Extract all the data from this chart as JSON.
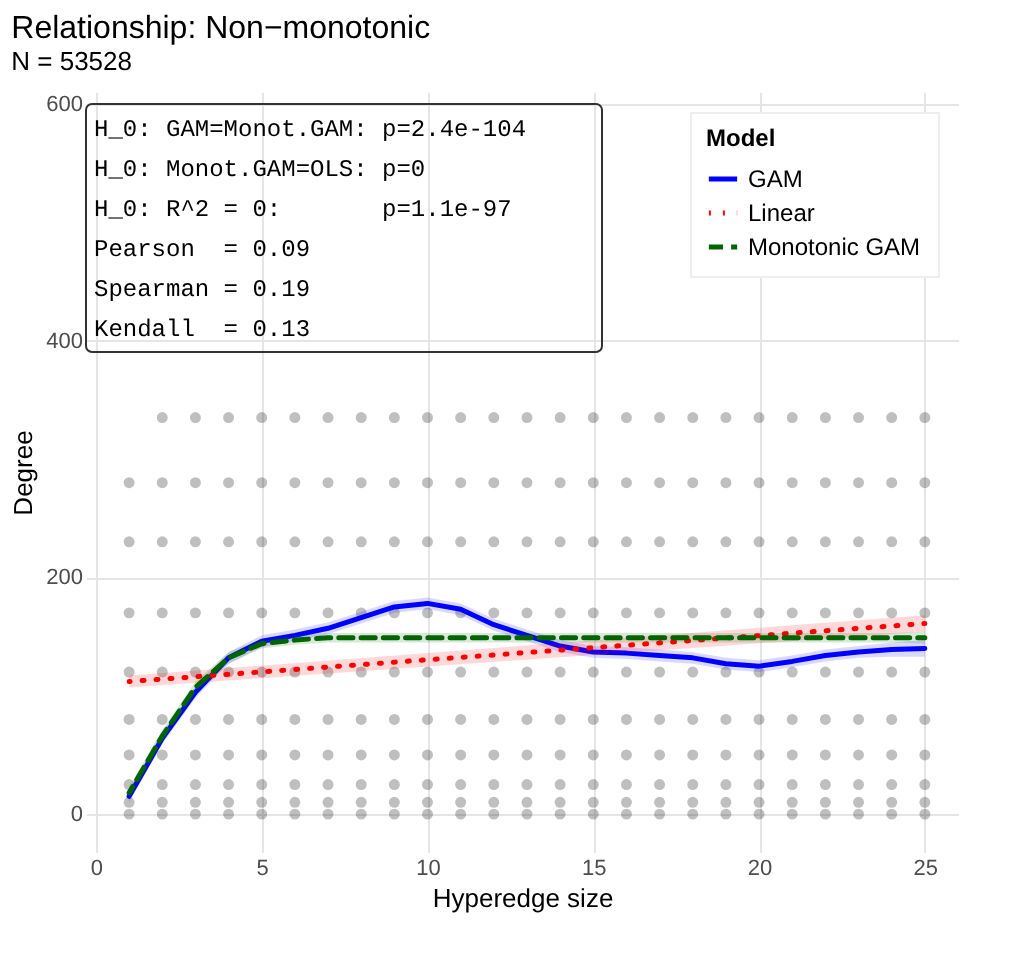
{
  "chart_data": {
    "type": "scatter",
    "title": "Relationship: Non−monotonic",
    "subtitle": "N = 53528",
    "xlabel": "Hyperedge size",
    "ylabel": "Degree",
    "legend_title": "Model",
    "annotations": [
      "H_0: GAM=Monot.GAM: p=2.4e-104",
      "H_0: Monot.GAM=OLS: p=0",
      "H_0: R^2 = 0:       p=1.1e-97",
      "Pearson  = 0.09",
      "Spearman = 0.19",
      "Kendall  = 0.13"
    ],
    "xlim": [
      -0.3,
      26
    ],
    "xticks": [
      0,
      5,
      10,
      15,
      20,
      25
    ],
    "ylim": [
      -32,
      610
    ],
    "yticks": [
      0,
      200,
      400,
      600
    ],
    "grid": true,
    "legend": "top right",
    "series": [
      {
        "type": "scatter",
        "color": "#000000",
        "marker": "circle",
        "x": [
          1,
          1,
          1,
          1,
          1,
          1,
          1,
          1,
          1,
          2,
          2,
          2,
          2,
          2,
          2,
          2,
          2,
          2,
          2,
          3,
          3,
          3,
          3,
          3,
          3,
          3,
          3,
          3,
          3,
          4,
          4,
          4,
          4,
          4,
          4,
          4,
          4,
          4,
          4,
          5,
          5,
          5,
          5,
          5,
          5,
          5,
          5,
          5,
          5,
          6,
          6,
          6,
          6,
          6,
          6,
          6,
          6,
          6,
          6,
          7,
          7,
          7,
          7,
          7,
          7,
          7,
          7,
          7,
          7,
          8,
          8,
          8,
          8,
          8,
          8,
          8,
          8,
          8,
          8,
          9,
          9,
          9,
          9,
          9,
          9,
          9,
          9,
          9,
          9,
          10,
          10,
          10,
          10,
          10,
          10,
          10,
          10,
          10,
          10,
          11,
          11,
          11,
          11,
          11,
          11,
          11,
          11,
          11,
          11,
          12,
          12,
          12,
          12,
          12,
          12,
          12,
          12,
          12,
          12,
          13,
          13,
          13,
          13,
          13,
          13,
          13,
          13,
          13,
          13,
          14,
          14,
          14,
          14,
          14,
          14,
          14,
          14,
          14,
          14,
          15,
          15,
          15,
          15,
          15,
          15,
          15,
          15,
          15,
          15,
          16,
          16,
          16,
          16,
          16,
          16,
          16,
          16,
          16,
          16,
          17,
          17,
          17,
          17,
          17,
          17,
          17,
          17,
          17,
          17,
          18,
          18,
          18,
          18,
          18,
          18,
          18,
          18,
          18,
          18,
          19,
          19,
          19,
          19,
          19,
          19,
          19,
          19,
          19,
          19,
          20,
          20,
          20,
          20,
          20,
          20,
          20,
          20,
          20,
          20,
          21,
          21,
          21,
          21,
          21,
          21,
          21,
          21,
          21,
          21,
          22,
          22,
          22,
          22,
          22,
          22,
          22,
          22,
          22,
          22,
          23,
          23,
          23,
          23,
          23,
          23,
          23,
          23,
          23,
          23,
          24,
          24,
          24,
          24,
          24,
          24,
          24,
          24,
          24,
          24,
          25,
          25,
          25,
          25,
          25,
          25,
          25,
          25,
          25,
          25
        ],
        "values": [
          0,
          10,
          25,
          50,
          80,
          120,
          170,
          230,
          280,
          0,
          10,
          25,
          50,
          80,
          120,
          170,
          230,
          280,
          335,
          0,
          10,
          25,
          50,
          80,
          120,
          170,
          230,
          280,
          335,
          0,
          10,
          25,
          50,
          80,
          120,
          170,
          230,
          280,
          335,
          0,
          10,
          25,
          50,
          80,
          120,
          170,
          230,
          280,
          335,
          0,
          10,
          25,
          50,
          80,
          120,
          170,
          230,
          280,
          335,
          0,
          10,
          25,
          50,
          80,
          120,
          170,
          230,
          280,
          335,
          0,
          10,
          25,
          50,
          80,
          120,
          170,
          230,
          280,
          335,
          0,
          10,
          25,
          50,
          80,
          120,
          170,
          230,
          280,
          335,
          0,
          10,
          25,
          50,
          80,
          120,
          170,
          230,
          280,
          335,
          0,
          10,
          25,
          50,
          80,
          120,
          170,
          230,
          280,
          335,
          0,
          10,
          25,
          50,
          80,
          120,
          170,
          230,
          280,
          335,
          0,
          10,
          25,
          50,
          80,
          120,
          170,
          230,
          280,
          335,
          0,
          10,
          25,
          50,
          80,
          120,
          170,
          230,
          280,
          335,
          0,
          10,
          25,
          50,
          80,
          120,
          170,
          230,
          280,
          335,
          0,
          10,
          25,
          50,
          80,
          120,
          170,
          230,
          280,
          335,
          0,
          10,
          25,
          50,
          80,
          120,
          170,
          230,
          280,
          335,
          0,
          10,
          25,
          50,
          80,
          120,
          170,
          230,
          280,
          335,
          0,
          10,
          25,
          50,
          80,
          120,
          170,
          230,
          280,
          335,
          0,
          10,
          25,
          50,
          80,
          120,
          170,
          230,
          280,
          335,
          0,
          10,
          25,
          50,
          80,
          120,
          170,
          230,
          280,
          335,
          0,
          10,
          25,
          50,
          80,
          120,
          170,
          230,
          280,
          335,
          0,
          10,
          25,
          50,
          80,
          120,
          170,
          230,
          280,
          335,
          0,
          10,
          25,
          50,
          80,
          120,
          170,
          230,
          280,
          335,
          0,
          10,
          25,
          50,
          80,
          120,
          170,
          230,
          280,
          335
        ]
      },
      {
        "type": "line",
        "name": "GAM",
        "color": "#0000ff",
        "line_style": "solid",
        "x": [
          1,
          2,
          3,
          4,
          5,
          6,
          7,
          8,
          9,
          10,
          11,
          12,
          13,
          14,
          15,
          16,
          17,
          18,
          19,
          20,
          21,
          22,
          23,
          24,
          25
        ],
        "values": [
          15,
          64,
          103,
          132,
          146,
          151,
          157,
          166,
          175,
          178,
          173,
          160,
          151,
          142,
          137,
          136,
          134,
          132,
          127,
          125,
          129,
          134,
          137,
          139,
          140
        ],
        "lower": [
          10,
          59,
          98,
          127,
          141,
          146,
          152,
          161,
          170,
          173,
          168,
          155,
          146,
          137,
          132,
          131,
          129,
          127,
          122,
          120,
          124,
          129,
          132,
          133,
          133
        ],
        "upper": [
          20,
          69,
          108,
          137,
          151,
          156,
          162,
          171,
          180,
          183,
          178,
          165,
          156,
          147,
          142,
          141,
          139,
          137,
          132,
          130,
          134,
          139,
          142,
          145,
          147
        ]
      },
      {
        "type": "line",
        "name": "Linear",
        "color": "#ff0000",
        "line_style": "dotted",
        "x": [
          1,
          25
        ],
        "values": [
          112,
          161
        ],
        "lower": [
          107,
          154
        ],
        "upper": [
          117,
          168
        ]
      },
      {
        "type": "line",
        "name": "Monotonic GAM",
        "color": "#006400",
        "line_style": "dashed",
        "x": [
          1,
          2,
          3,
          4,
          5,
          6,
          7,
          8,
          9,
          10,
          11,
          12,
          13,
          14,
          15,
          16,
          17,
          18,
          19,
          20,
          21,
          22,
          23,
          24,
          25
        ],
        "values": [
          18,
          66,
          107,
          132,
          144,
          147,
          149,
          149,
          149,
          149,
          149,
          149,
          149,
          149,
          149,
          149,
          149,
          149,
          149,
          149,
          149,
          149,
          149,
          149,
          149
        ],
        "lower": [
          13,
          61,
          102,
          127,
          140,
          143,
          145,
          145,
          145,
          145,
          145,
          145,
          145,
          145,
          145,
          145,
          145,
          145,
          145,
          145,
          145,
          145,
          145,
          145,
          144
        ],
        "upper": [
          23,
          71,
          112,
          137,
          148,
          151,
          153,
          153,
          153,
          153,
          153,
          153,
          153,
          153,
          153,
          153,
          153,
          153,
          153,
          153,
          153,
          153,
          153,
          153,
          154
        ]
      }
    ]
  }
}
